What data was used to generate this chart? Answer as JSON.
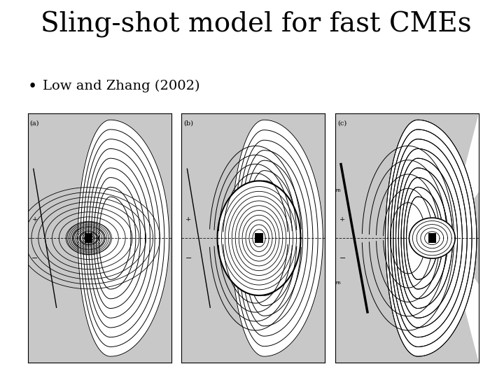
{
  "title": "Sling-shot model for fast CMEs",
  "bullet": "Low and Zhang (2002)",
  "title_fontsize": 28,
  "bullet_fontsize": 14,
  "bg_color": "#ffffff",
  "gray_color": "#c8c8c8",
  "panel_labels": [
    "(a)",
    "(b)",
    "(c)"
  ]
}
